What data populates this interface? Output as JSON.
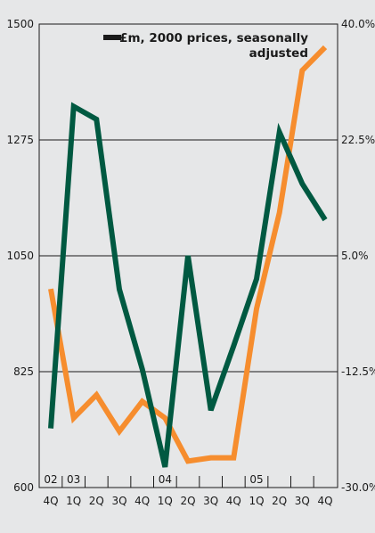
{
  "chart_data": {
    "type": "line",
    "legend_text_line1": "£m, 2000 prices, seasonally",
    "legend_text_line2": "adjusted",
    "legend_placement": "top-right",
    "categories": [
      "4Q",
      "1Q",
      "2Q",
      "3Q",
      "4Q",
      "1Q",
      "2Q",
      "3Q",
      "4Q",
      "1Q",
      "2Q",
      "3Q",
      "4Q"
    ],
    "year_labels": [
      {
        "label": "02",
        "index": 0
      },
      {
        "label": "03",
        "index": 1
      },
      {
        "label": "04",
        "index": 5
      },
      {
        "label": "05",
        "index": 9
      }
    ],
    "y_left": {
      "ticks": [
        "1500",
        "1275",
        "1050",
        "825",
        "600"
      ],
      "values": [
        1500,
        1275,
        1050,
        825,
        600
      ],
      "ylim": [
        600,
        1500
      ]
    },
    "y_right": {
      "ticks": [
        "40.0%",
        "22.5%",
        "5.0%",
        "-12.5%",
        "-30.0%"
      ],
      "values": [
        40.0,
        22.5,
        5.0,
        -12.5,
        -30.0
      ],
      "ylim": [
        -30.0,
        40.0
      ]
    },
    "grid": "horizontal",
    "series": [
      {
        "axis": "left",
        "color": "#005941",
        "values": [
          715,
          1340,
          1315,
          985,
          830,
          640,
          1050,
          750,
          875,
          1005,
          1290,
          1190,
          1120
        ]
      },
      {
        "axis": "right",
        "color": "#f68d2e",
        "values": [
          0.0,
          -19.5,
          -16.0,
          -21.5,
          -17.0,
          -19.5,
          -26.0,
          -25.5,
          -25.5,
          -3.0,
          11.5,
          33.0,
          36.5
        ]
      }
    ]
  }
}
